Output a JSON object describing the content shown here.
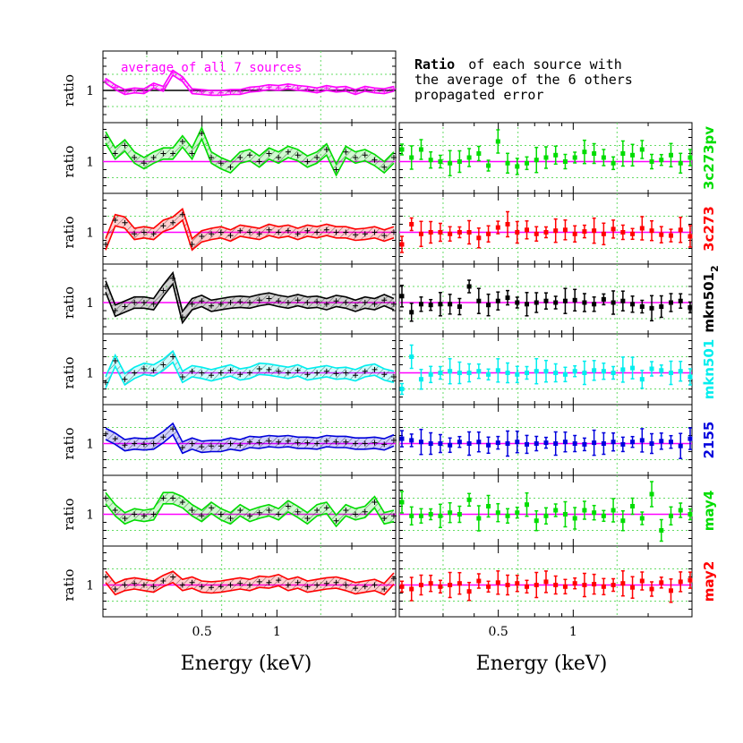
{
  "note": {
    "bold": "Ratio",
    "line1_rest": "of each source with",
    "line2": "the average of the 6 others",
    "line3": "propagated error"
  },
  "colors": {
    "magenta": "#ff00ff",
    "green": "#00dd00",
    "red": "#ff0000",
    "black": "#000000",
    "cyan": "#00eeee",
    "blue": "#0000dd",
    "gridline": "#66dd66"
  },
  "chart_data": [
    {
      "type": "line",
      "panel": "left",
      "xlabel": "Energy (keV)",
      "ylabel": "ratio",
      "xscale": "log",
      "xticks": [
        0.5,
        1
      ],
      "xtick_labels": [
        "0.5",
        "1"
      ],
      "ytick_label": "1",
      "reference_line_y": 1,
      "annotation": "average of all 7 sources",
      "series": [
        {
          "label": "average of all 7 sources",
          "color": "#ff00ff",
          "values": [
            1.12,
            1.04,
            0.98,
            1.0,
            0.99,
            1.06,
            1.02,
            1.22,
            1.14,
            0.99,
            0.98,
            0.97,
            0.97,
            0.98,
            0.98,
            1.01,
            1.02,
            1.04,
            1.03,
            1.05,
            1.03,
            1.02,
            1.0,
            1.03,
            1.01,
            1.02,
            0.98,
            1.02,
            1.0,
            0.99,
            1.02
          ]
        },
        {
          "label": "3c273pv",
          "color": "#00dd00",
          "values": [
            1.3,
            1.1,
            1.2,
            1.05,
            0.98,
            1.05,
            1.1,
            1.1,
            1.25,
            1.1,
            1.35,
            1.05,
            0.98,
            0.93,
            1.05,
            1.08,
            1.0,
            1.1,
            1.05,
            1.12,
            1.08,
            1.0,
            1.05,
            1.15,
            0.9,
            1.12,
            1.05,
            1.08,
            1.02,
            0.93,
            1.05
          ]
        },
        {
          "label": "3c273",
          "color": "#ff0000",
          "values": [
            0.85,
            1.15,
            1.12,
            0.98,
            1.0,
            0.98,
            1.08,
            1.12,
            1.22,
            0.85,
            0.95,
            0.98,
            1.0,
            0.96,
            1.02,
            1.0,
            0.98,
            1.03,
            1.0,
            1.02,
            0.98,
            1.02,
            1.0,
            1.03,
            1.0,
            1.0,
            0.97,
            0.98,
            1.0,
            0.96,
            1.0
          ]
        },
        {
          "label": "mkn501_2",
          "color": "#000000",
          "values": [
            1.2,
            0.9,
            0.95,
            1.0,
            1.0,
            0.98,
            1.15,
            1.3,
            0.82,
            0.98,
            1.02,
            0.96,
            0.98,
            1.0,
            1.01,
            1.0,
            1.03,
            1.05,
            1.02,
            1.0,
            1.03,
            1.0,
            1.01,
            0.98,
            1.02,
            1.0,
            0.96,
            1.0,
            0.98,
            1.03,
            0.98
          ]
        },
        {
          "label": "mkn501",
          "color": "#00eeee",
          "values": [
            0.88,
            1.15,
            0.92,
            1.0,
            1.05,
            1.03,
            1.1,
            1.2,
            0.95,
            1.02,
            1.0,
            0.97,
            1.0,
            1.03,
            0.98,
            1.0,
            1.05,
            1.04,
            1.02,
            1.0,
            1.03,
            0.98,
            1.0,
            1.02,
            0.99,
            1.0,
            0.97,
            1.02,
            1.04,
            0.98,
            0.95
          ]
        },
        {
          "label": "2155",
          "color": "#0000dd",
          "values": [
            1.12,
            1.06,
            0.98,
            1.0,
            0.99,
            1.0,
            1.08,
            1.18,
            0.95,
            1.0,
            0.96,
            0.97,
            0.97,
            1.0,
            0.98,
            1.02,
            1.01,
            1.03,
            1.02,
            1.03,
            1.01,
            1.01,
            1.0,
            1.03,
            1.02,
            1.02,
            1.0,
            1.0,
            1.01,
            0.99,
            1.04
          ]
        },
        {
          "label": "may4",
          "color": "#00dd00",
          "values": [
            1.2,
            1.05,
            0.95,
            1.0,
            0.98,
            1.0,
            1.2,
            1.2,
            1.15,
            1.05,
            0.98,
            1.08,
            1.0,
            0.95,
            1.05,
            0.98,
            1.02,
            1.05,
            1.0,
            1.1,
            1.03,
            0.95,
            1.05,
            1.08,
            0.92,
            1.05,
            1.0,
            1.03,
            1.15,
            0.95,
            0.98
          ]
        },
        {
          "label": "may2",
          "color": "#ff0000",
          "values": [
            1.1,
            0.95,
            1.0,
            1.02,
            1.0,
            0.98,
            1.05,
            1.1,
            1.0,
            1.03,
            0.98,
            0.97,
            0.98,
            1.0,
            1.02,
            1.0,
            1.04,
            1.03,
            1.06,
            1.0,
            1.03,
            0.98,
            1.0,
            1.02,
            1.03,
            1.0,
            0.96,
            0.98,
            1.0,
            0.95,
            1.08
          ]
        }
      ]
    },
    {
      "type": "scatter",
      "panel": "right",
      "xlabel": "Energy (keV)",
      "xscale": "log",
      "xticks": [
        0.5,
        1
      ],
      "xtick_labels": [
        "0.5",
        "1"
      ],
      "reference_line_y": 1,
      "series": [
        {
          "label": "3c273pv",
          "color": "#00dd00",
          "values": [
            1.15,
            1.05,
            1.15,
            1.02,
            1.0,
            0.98,
            1.0,
            1.05,
            1.1,
            0.95,
            1.25,
            0.98,
            0.94,
            0.98,
            1.02,
            1.05,
            1.08,
            1.0,
            1.05,
            1.12,
            1.1,
            1.05,
            0.98,
            1.1,
            1.08,
            1.15,
            1.0,
            1.02,
            1.08,
            0.98,
            1.05
          ]
        },
        {
          "label": "3c273",
          "color": "#ff0000",
          "values": [
            0.85,
            1.1,
            0.98,
            1.0,
            1.0,
            0.98,
            1.0,
            1.0,
            0.93,
            0.98,
            1.06,
            1.1,
            1.0,
            1.03,
            0.98,
            1.0,
            1.02,
            1.03,
            0.98,
            1.01,
            1.02,
            0.98,
            1.04,
            1.0,
            0.98,
            1.05,
            1.02,
            0.97,
            0.96,
            1.03,
            0.95
          ]
        },
        {
          "label": "mkn501_2",
          "color": "#000000",
          "values": [
            1.08,
            0.88,
            0.98,
            0.97,
            0.98,
            0.98,
            0.95,
            1.2,
            1.02,
            0.97,
            1.02,
            1.06,
            1.0,
            0.98,
            1.0,
            1.02,
            1.0,
            1.02,
            1.03,
            1.0,
            0.98,
            1.04,
            1.0,
            1.02,
            0.98,
            0.95,
            0.93,
            0.95,
            1.0,
            1.02,
            0.94
          ]
        },
        {
          "label": "mkn501",
          "color": "#00eeee",
          "values": [
            0.8,
            1.2,
            0.92,
            0.98,
            1.0,
            1.02,
            1.0,
            1.0,
            1.02,
            0.98,
            1.03,
            1.0,
            0.98,
            1.0,
            1.02,
            1.02,
            1.0,
            0.98,
            1.02,
            1.0,
            1.03,
            1.02,
            1.0,
            1.04,
            1.06,
            0.92,
            1.05,
            1.03,
            1.0,
            1.02,
            0.95
          ]
        },
        {
          "label": "2155",
          "color": "#0000dd",
          "values": [
            1.06,
            1.04,
            1.02,
            1.0,
            1.0,
            0.98,
            1.02,
            1.0,
            1.02,
            0.98,
            1.01,
            1.0,
            1.02,
            0.99,
            1.0,
            1.01,
            1.0,
            1.02,
            1.0,
            0.99,
            1.01,
            1.0,
            1.02,
            0.99,
            1.02,
            1.04,
            1.0,
            1.03,
            1.02,
            0.97,
            1.06
          ]
        },
        {
          "label": "may4",
          "color": "#00dd00",
          "values": [
            1.15,
            0.98,
            0.98,
            1.0,
            0.98,
            1.02,
            1.0,
            1.18,
            0.95,
            1.1,
            1.02,
            0.98,
            1.02,
            1.12,
            0.92,
            0.98,
            1.05,
            1.0,
            0.95,
            1.05,
            1.02,
            0.98,
            1.05,
            0.92,
            1.1,
            0.95,
            1.25,
            0.8,
            0.98,
            1.05,
            1.0
          ]
        },
        {
          "label": "may2",
          "color": "#ff0000",
          "values": [
            0.98,
            0.95,
            1.0,
            1.02,
            0.98,
            1.0,
            1.02,
            0.92,
            1.05,
            0.98,
            1.03,
            1.0,
            1.02,
            0.98,
            1.0,
            1.04,
            1.0,
            0.98,
            1.02,
            1.0,
            1.01,
            0.98,
            1.0,
            1.02,
            0.97,
            1.05,
            0.95,
            1.03,
            0.93,
            1.04,
            1.06
          ]
        }
      ]
    }
  ],
  "right_labels": [
    {
      "text": "3c273pv",
      "sub": "",
      "color": "#00dd00"
    },
    {
      "text": "3c273",
      "sub": "",
      "color": "#ff0000"
    },
    {
      "text": "mkn501",
      "sub": "2",
      "color": "#000000"
    },
    {
      "text": "mkn501",
      "sub": "",
      "color": "#00eeee"
    },
    {
      "text": "2155",
      "sub": "",
      "color": "#0000dd"
    },
    {
      "text": "may4",
      "sub": "",
      "color": "#00dd00"
    },
    {
      "text": "may2",
      "sub": "",
      "color": "#ff0000"
    }
  ]
}
